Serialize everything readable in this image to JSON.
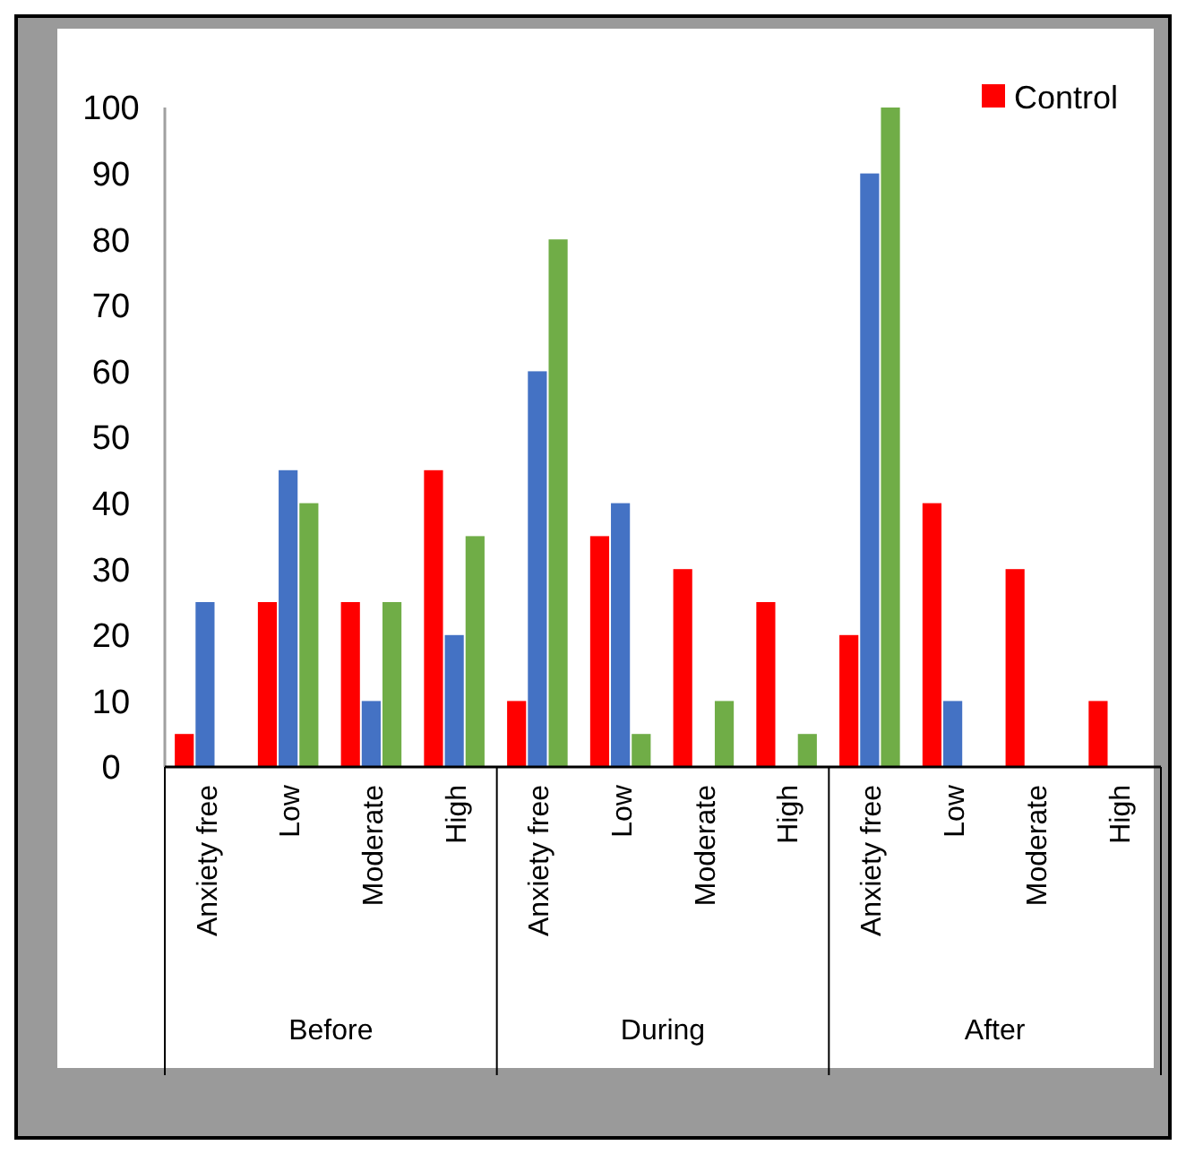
{
  "chart_data": {
    "type": "bar",
    "categories": [
      "Anxiety free",
      "Low",
      "Moderate",
      "High",
      "Anxiety free",
      "Low",
      "Moderate",
      "High",
      "Anxiety free",
      "Low",
      "Moderate",
      "High"
    ],
    "series": [
      {
        "name": "Control",
        "color": "#ff0000",
        "values": [
          5,
          25,
          25,
          45,
          10,
          35,
          30,
          25,
          20,
          40,
          30,
          10
        ]
      },
      {
        "color": "#4472c4",
        "values": [
          25,
          45,
          10,
          20,
          60,
          40,
          0,
          0,
          90,
          10,
          0,
          0
        ]
      },
      {
        "color": "#70ad47",
        "values": [
          0,
          40,
          25,
          35,
          80,
          5,
          10,
          5,
          100,
          0,
          0,
          0
        ]
      }
    ],
    "annotations": [
      "Before",
      "During",
      "After"
    ],
    "ylim": [
      0,
      100
    ],
    "yticks": [
      0,
      10,
      20,
      30,
      40,
      50,
      60,
      70,
      80,
      90,
      100
    ],
    "grid": false,
    "legend": "top right"
  }
}
